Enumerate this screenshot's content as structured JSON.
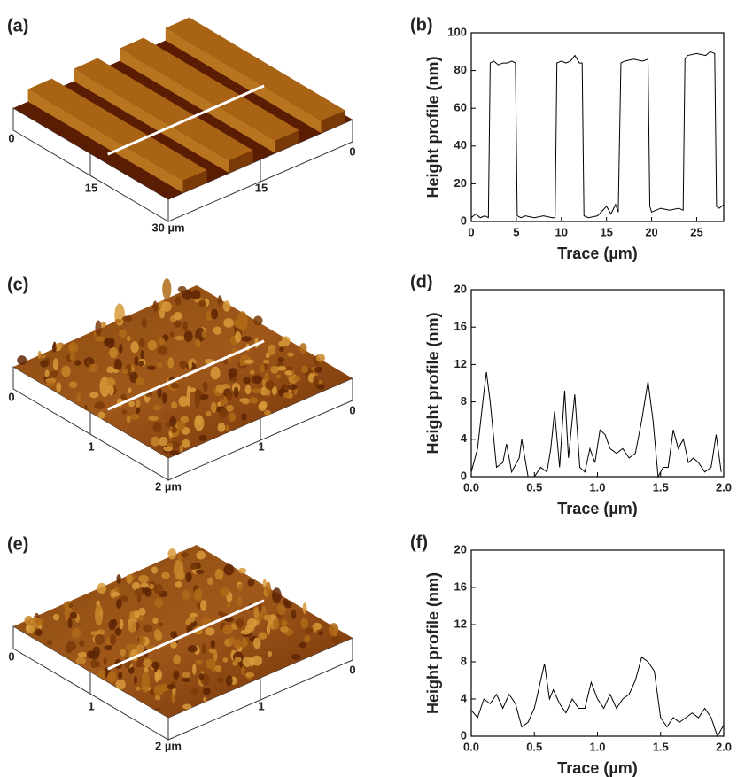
{
  "afm_images": [
    {
      "panel_label": "(a)",
      "axis_labels": [
        "0",
        "15",
        "15",
        "0",
        "30 µm"
      ]
    },
    {
      "panel_label": "(c)",
      "axis_labels": [
        "0",
        "1",
        "1",
        "0",
        "2 µm"
      ]
    },
    {
      "panel_label": "(e)",
      "axis_labels": [
        "0",
        "1",
        "1",
        "0",
        "2 µm"
      ]
    }
  ],
  "chart_data": [
    {
      "type": "line",
      "panel_label": "(b)",
      "x_label": "Trace (µm)",
      "y_label": "Height profile (nm)",
      "color": "#000000",
      "x": [
        0,
        0.5,
        1,
        1.5,
        1.9,
        2.1,
        2.5,
        3,
        3.5,
        4,
        4.5,
        4.9,
        5.1,
        5.5,
        6,
        7,
        8,
        9,
        9.3,
        9.5,
        10,
        10.5,
        11,
        11.5,
        12,
        12.3,
        12.5,
        13,
        14,
        15,
        15.5,
        16,
        16.3,
        16.6,
        17,
        18,
        19,
        19.6,
        19.8,
        20,
        21,
        22,
        23,
        23.5,
        23.7,
        24,
        25,
        26,
        26.5,
        27,
        27.2,
        27.5,
        28
      ],
      "values": [
        2,
        4,
        2,
        3,
        2,
        84,
        85,
        83,
        84,
        84,
        85,
        84,
        3,
        2,
        3,
        2,
        3,
        2,
        2,
        84,
        85,
        84,
        85,
        88,
        84,
        84,
        3,
        2,
        3,
        8,
        4,
        9,
        5,
        84,
        85,
        86,
        85,
        86,
        8,
        5,
        7,
        6,
        7,
        6,
        86,
        88,
        89,
        88,
        90,
        89,
        8,
        7,
        9
      ],
      "xlim": [
        0,
        28
      ],
      "ylim": [
        0,
        100
      ],
      "xticks": [
        0,
        5,
        10,
        15,
        20,
        25
      ],
      "yticks": [
        0,
        20,
        40,
        60,
        80,
        100
      ]
    },
    {
      "type": "line",
      "panel_label": "(d)",
      "x_label": "Trace (µm)",
      "y_label": "Height profile (nm)",
      "color": "#000000",
      "x": [
        0,
        0.05,
        0.1,
        0.12,
        0.15,
        0.2,
        0.25,
        0.28,
        0.32,
        0.38,
        0.4,
        0.45,
        0.5,
        0.55,
        0.6,
        0.63,
        0.66,
        0.7,
        0.74,
        0.77,
        0.82,
        0.86,
        0.9,
        0.94,
        0.98,
        1.02,
        1.06,
        1.1,
        1.15,
        1.2,
        1.25,
        1.3,
        1.35,
        1.4,
        1.44,
        1.48,
        1.52,
        1.56,
        1.6,
        1.64,
        1.68,
        1.72,
        1.76,
        1.8,
        1.85,
        1.9,
        1.94,
        1.98
      ],
      "values": [
        0.5,
        3,
        9,
        11.2,
        8,
        1,
        1.5,
        3.5,
        0.5,
        2,
        4,
        0,
        0,
        1,
        0.5,
        3,
        7,
        1,
        9.2,
        2,
        8.8,
        1,
        0.5,
        3,
        1.5,
        5,
        4.5,
        3,
        2.5,
        3,
        2,
        2.5,
        6,
        10.2,
        6,
        0,
        1,
        1,
        5,
        3,
        4,
        1.5,
        2,
        1.5,
        0.5,
        1,
        4.5,
        0.5
      ],
      "xlim": [
        0,
        2
      ],
      "ylim": [
        0,
        20
      ],
      "xticks": [
        {
          "value": 0,
          "label": "0.0"
        },
        {
          "value": 0.5,
          "label": "0.5"
        },
        {
          "value": 1,
          "label": "1.0"
        },
        {
          "value": 1.5,
          "label": "1.5"
        },
        {
          "value": 2,
          "label": "2.0"
        }
      ],
      "yticks": [
        0,
        4,
        8,
        12,
        16,
        20
      ]
    },
    {
      "type": "line",
      "panel_label": "(f)",
      "x_label": "Trace (µm)",
      "y_label": "Height profile (nm)",
      "color": "#000000",
      "x": [
        0,
        0.05,
        0.1,
        0.15,
        0.2,
        0.25,
        0.3,
        0.35,
        0.4,
        0.45,
        0.5,
        0.55,
        0.58,
        0.62,
        0.65,
        0.7,
        0.75,
        0.8,
        0.85,
        0.9,
        0.95,
        1,
        1.05,
        1.1,
        1.15,
        1.2,
        1.25,
        1.3,
        1.35,
        1.4,
        1.45,
        1.5,
        1.55,
        1.6,
        1.65,
        1.7,
        1.75,
        1.8,
        1.85,
        1.9,
        1.95,
        2
      ],
      "values": [
        2.8,
        2,
        4,
        3.5,
        4.5,
        3,
        4.5,
        3.5,
        1,
        1.5,
        3,
        6,
        7.8,
        4,
        5,
        3.5,
        2.5,
        4,
        3,
        3,
        5.8,
        4,
        3,
        4.5,
        3,
        4,
        4.5,
        6,
        8.5,
        8,
        7,
        2,
        1,
        2,
        1.5,
        2,
        2.5,
        2,
        3,
        2,
        0,
        1.2
      ],
      "xlim": [
        0,
        2
      ],
      "ylim": [
        0,
        20
      ],
      "xticks": [
        {
          "value": 0,
          "label": "0.0"
        },
        {
          "value": 0.5,
          "label": "0.5"
        },
        {
          "value": 1,
          "label": "1.0"
        },
        {
          "value": 1.5,
          "label": "1.5"
        },
        {
          "value": 2,
          "label": "2.0"
        }
      ],
      "yticks": [
        0,
        4,
        8,
        12,
        16,
        20
      ]
    }
  ]
}
